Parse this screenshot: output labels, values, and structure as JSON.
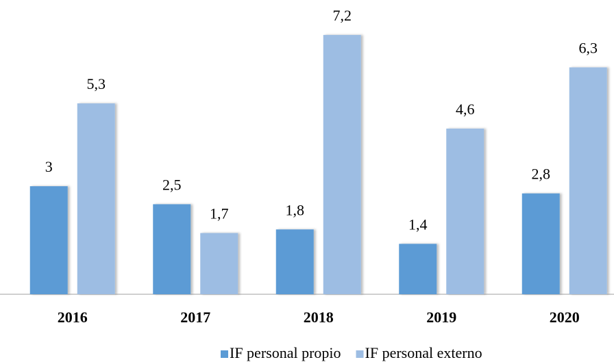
{
  "chart_data": {
    "type": "bar",
    "categories": [
      "2016",
      "2017",
      "2018",
      "2019",
      "2020"
    ],
    "series": [
      {
        "name": "IF personal propio",
        "color": "#5b9bd5",
        "values": [
          3,
          2.5,
          1.8,
          1.4,
          2.8
        ],
        "value_labels": [
          "3",
          "2,5",
          "1,8",
          "1,4",
          "2,8"
        ]
      },
      {
        "name": "IF personal externo",
        "color": "#9dbde3",
        "values": [
          5.3,
          1.7,
          7.2,
          4.6,
          6.3
        ],
        "value_labels": [
          "5,3",
          "1,7",
          "7,2",
          "4,6",
          "6,3"
        ]
      }
    ],
    "ylim": [
      0,
      8
    ],
    "legend": "bottom"
  }
}
